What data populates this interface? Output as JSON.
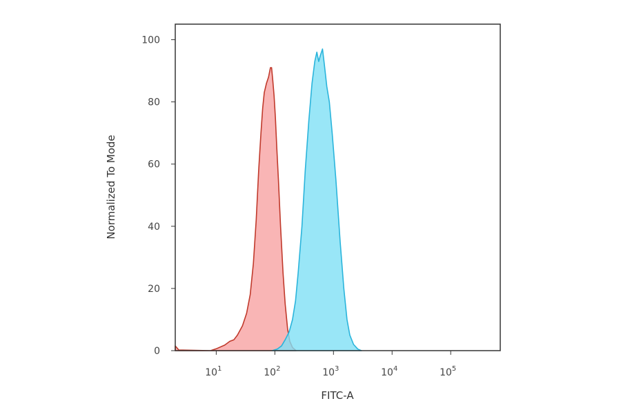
{
  "chart_data": {
    "type": "area",
    "title": "",
    "xlabel": "FITC-A",
    "ylabel": "Normalized To Mode",
    "x_scale": "log",
    "xlim": [
      2,
      700000
    ],
    "ylim": [
      0,
      105
    ],
    "x_ticks": [
      {
        "value": 10,
        "base": "10",
        "exp": "1"
      },
      {
        "value": 100,
        "base": "10",
        "exp": "2"
      },
      {
        "value": 1000,
        "base": "10",
        "exp": "3"
      },
      {
        "value": 10000,
        "base": "10",
        "exp": "4"
      },
      {
        "value": 100000,
        "base": "10",
        "exp": "5"
      }
    ],
    "y_ticks": [
      {
        "value": 0,
        "label": "0"
      },
      {
        "value": 20,
        "label": "20"
      },
      {
        "value": 40,
        "label": "40"
      },
      {
        "value": 60,
        "label": "60"
      },
      {
        "value": 80,
        "label": "80"
      },
      {
        "value": 100,
        "label": "100"
      }
    ],
    "grid": false,
    "series": [
      {
        "fill": "#f7a3a3",
        "stroke": "#c0392b",
        "points": [
          [
            2,
            1.5
          ],
          [
            2.3,
            0.2
          ],
          [
            8,
            0
          ],
          [
            10,
            0.6
          ],
          [
            14,
            1.8
          ],
          [
            17,
            3
          ],
          [
            20,
            3.5
          ],
          [
            23,
            5
          ],
          [
            28,
            8
          ],
          [
            33,
            12
          ],
          [
            38,
            18
          ],
          [
            43,
            28
          ],
          [
            48,
            42
          ],
          [
            53,
            58
          ],
          [
            58,
            70
          ],
          [
            62,
            78
          ],
          [
            66,
            83
          ],
          [
            72,
            86
          ],
          [
            78,
            88
          ],
          [
            84,
            91
          ],
          [
            88,
            91
          ],
          [
            92,
            87
          ],
          [
            97,
            82
          ],
          [
            102,
            75
          ],
          [
            108,
            65
          ],
          [
            115,
            55
          ],
          [
            125,
            40
          ],
          [
            138,
            25
          ],
          [
            150,
            15
          ],
          [
            165,
            7
          ],
          [
            180,
            3
          ],
          [
            200,
            1
          ],
          [
            230,
            0
          ]
        ]
      },
      {
        "fill": "#7fe0f5",
        "stroke": "#2ab4db",
        "points": [
          [
            90,
            0
          ],
          [
            110,
            0.5
          ],
          [
            130,
            1.5
          ],
          [
            150,
            3.5
          ],
          [
            175,
            6
          ],
          [
            200,
            10
          ],
          [
            225,
            16
          ],
          [
            250,
            25
          ],
          [
            290,
            40
          ],
          [
            330,
            58
          ],
          [
            380,
            74
          ],
          [
            430,
            86
          ],
          [
            480,
            93
          ],
          [
            520,
            96
          ],
          [
            560,
            93
          ],
          [
            600,
            95
          ],
          [
            650,
            97
          ],
          [
            700,
            92
          ],
          [
            770,
            85
          ],
          [
            850,
            80
          ],
          [
            950,
            70
          ],
          [
            1100,
            55
          ],
          [
            1300,
            35
          ],
          [
            1500,
            20
          ],
          [
            1700,
            10
          ],
          [
            1900,
            5
          ],
          [
            2200,
            2
          ],
          [
            2600,
            0.5
          ],
          [
            3000,
            0
          ]
        ]
      }
    ]
  }
}
